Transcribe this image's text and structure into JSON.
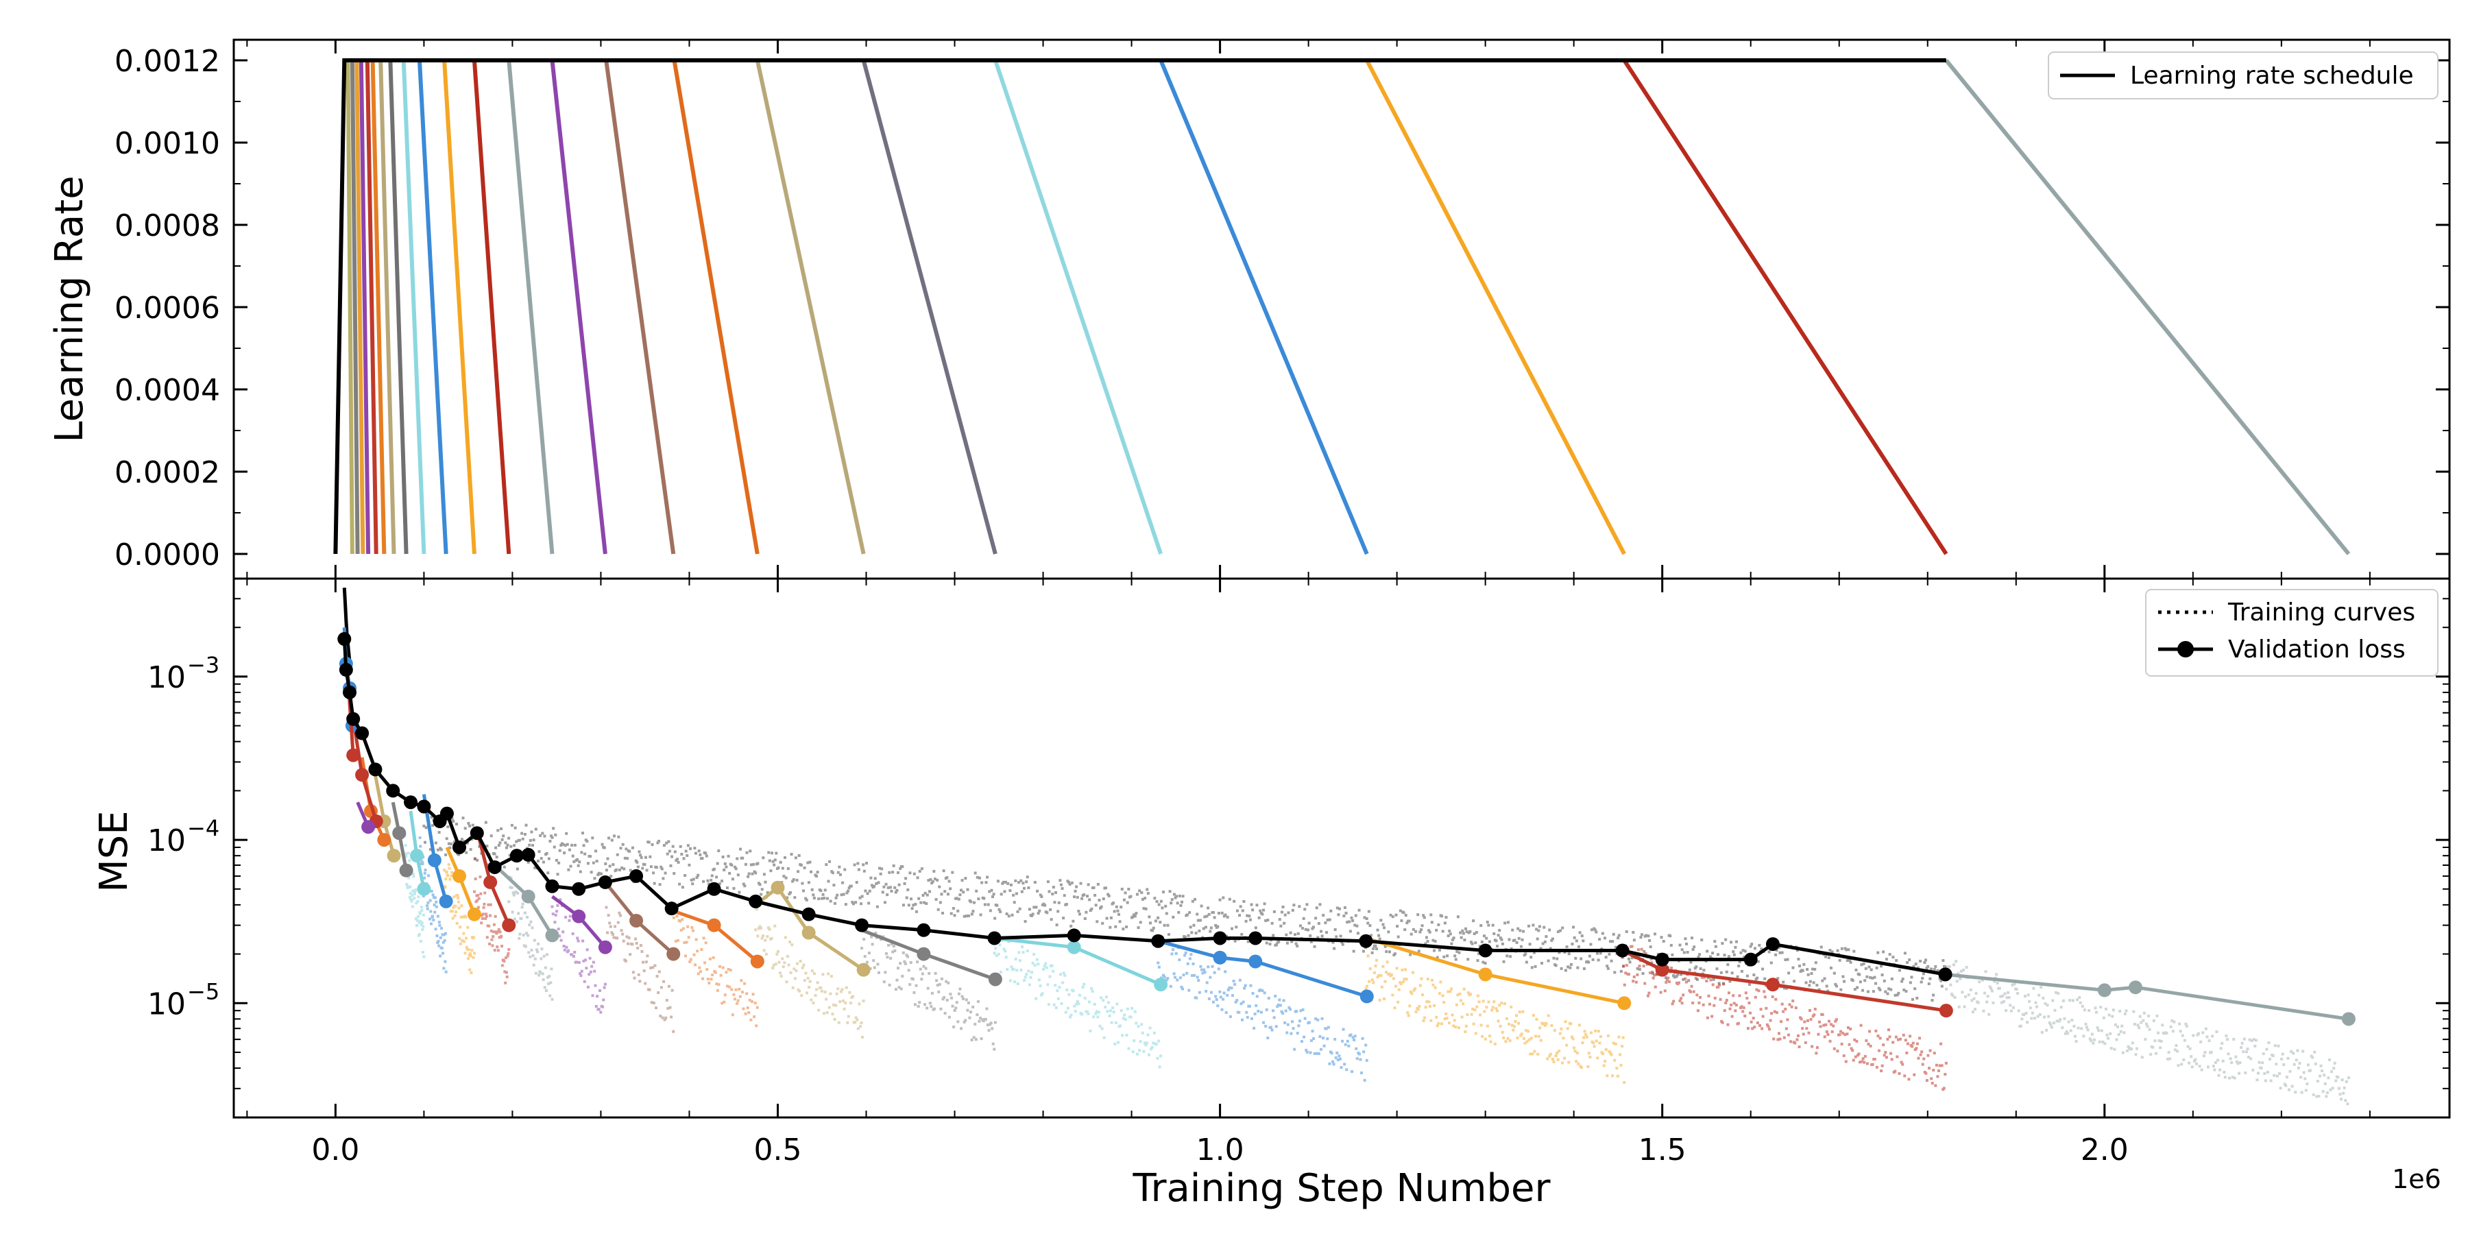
{
  "chart_data": [
    {
      "type": "line",
      "panel": "top",
      "ylabel": "Learning Rate",
      "xlabel": "",
      "ylim": [
        -6e-05,
        0.00125
      ],
      "xlim": [
        -115000,
        2390000
      ],
      "yticks": [
        0.0,
        0.0002,
        0.0004,
        0.0006,
        0.0008,
        0.001,
        0.0012
      ],
      "ytick_labels": [
        "0.0000",
        "0.0002",
        "0.0004",
        "0.0006",
        "0.0008",
        "0.0010",
        "0.0012"
      ],
      "legend": [
        {
          "label": "Learning rate schedule",
          "style": "solid",
          "color": "#000000"
        }
      ],
      "legend_position": "top-right",
      "warmup": {
        "start_step": 0,
        "end_step": 10000,
        "peak_lr": 0.0012
      },
      "cooldown_branches": [
        {
          "start": 14000,
          "end": 19000,
          "color": "#b8b068"
        },
        {
          "start": 19000,
          "end": 25000,
          "color": "#7f7f7f"
        },
        {
          "start": 24000,
          "end": 31000,
          "color": "#e8a030"
        },
        {
          "start": 29000,
          "end": 37000,
          "color": "#8e44ad"
        },
        {
          "start": 36000,
          "end": 46000,
          "color": "#c0392b"
        },
        {
          "start": 42000,
          "end": 55000,
          "color": "#e67e22"
        },
        {
          "start": 51000,
          "end": 66000,
          "color": "#b8a878"
        },
        {
          "start": 62000,
          "end": 80000,
          "color": "#707070"
        },
        {
          "start": 77000,
          "end": 100000,
          "color": "#8dd8e0"
        },
        {
          "start": 95000,
          "end": 125000,
          "color": "#3a8ad8"
        },
        {
          "start": 123000,
          "end": 157000,
          "color": "#f5a623"
        },
        {
          "start": 157000,
          "end": 196000,
          "color": "#b82a1c"
        },
        {
          "start": 196000,
          "end": 245000,
          "color": "#95a5a6"
        },
        {
          "start": 245000,
          "end": 305000,
          "color": "#8e44ad"
        },
        {
          "start": 306000,
          "end": 382000,
          "color": "#a0705e"
        },
        {
          "start": 383000,
          "end": 477000,
          "color": "#e06a1a"
        },
        {
          "start": 477000,
          "end": 597000,
          "color": "#b8a878"
        },
        {
          "start": 597000,
          "end": 746000,
          "color": "#707080"
        },
        {
          "start": 746000,
          "end": 933000,
          "color": "#90d8e0"
        },
        {
          "start": 933000,
          "end": 1166000,
          "color": "#3a8ad8"
        },
        {
          "start": 1166000,
          "end": 1457000,
          "color": "#f5a623"
        },
        {
          "start": 1457000,
          "end": 1821000,
          "color": "#b82a1c"
        },
        {
          "start": 1821000,
          "end": 2276000,
          "color": "#95a5a6"
        }
      ]
    },
    {
      "type": "line",
      "panel": "bottom",
      "ylabel": "MSE",
      "xlabel": "Training Step Number",
      "x_offset_text": "1e6",
      "yscale": "log",
      "ylim_log10": [
        -5.7,
        -2.4
      ],
      "xlim": [
        -115000,
        2390000
      ],
      "xticks": [
        0,
        500000,
        1000000,
        1500000,
        2000000
      ],
      "xtick_labels": [
        "0.0",
        "0.5",
        "1.0",
        "1.5",
        "2.0"
      ],
      "yticks_log10": [
        -3,
        -4,
        -5
      ],
      "ytick_bases": [
        "10",
        "10",
        "10"
      ],
      "ytick_exponents": [
        "−3",
        "−4",
        "−5"
      ],
      "legend": [
        {
          "label": "Training curves",
          "style": "dotted"
        },
        {
          "label": "Validation loss",
          "style": "solid-marker"
        }
      ],
      "legend_position": "top-right",
      "validation_main": {
        "name": "Validation loss (main run)",
        "color": "#000000",
        "points": [
          [
            10000,
            0.0017
          ],
          [
            12000,
            0.0011
          ],
          [
            16000,
            0.0008
          ],
          [
            20000,
            0.00055
          ],
          [
            30000,
            0.00045
          ],
          [
            45000,
            0.00027
          ],
          [
            65000,
            0.0002
          ],
          [
            85000,
            0.00017
          ],
          [
            100000,
            0.00016
          ],
          [
            118000,
            0.00013
          ],
          [
            126000,
            0.000145
          ],
          [
            140000,
            9e-05
          ],
          [
            160000,
            0.00011
          ],
          [
            180000,
            6.8e-05
          ],
          [
            205000,
            8e-05
          ],
          [
            218000,
            8.1e-05
          ],
          [
            245000,
            5.2e-05
          ],
          [
            275000,
            5e-05
          ],
          [
            305000,
            5.5e-05
          ],
          [
            340000,
            6e-05
          ],
          [
            380000,
            3.8e-05
          ],
          [
            428000,
            5e-05
          ],
          [
            475000,
            4.2e-05
          ],
          [
            535000,
            3.5e-05
          ],
          [
            595000,
            3e-05
          ],
          [
            665000,
            2.8e-05
          ],
          [
            745000,
            2.5e-05
          ],
          [
            835000,
            2.6e-05
          ],
          [
            930000,
            2.4e-05
          ],
          [
            1000000,
            2.5e-05
          ],
          [
            1040000,
            2.5e-05
          ],
          [
            1165000,
            2.4e-05
          ],
          [
            1300000,
            2.1e-05
          ],
          [
            1455000,
            2.1e-05
          ],
          [
            1500000,
            1.85e-05
          ],
          [
            1600000,
            1.85e-05
          ],
          [
            1625000,
            2.3e-05
          ],
          [
            1820000,
            1.5e-05
          ]
        ]
      },
      "validation_branches": [
        {
          "color": "#95a5a6",
          "points": [
            [
              1820000,
              1.5e-05
            ],
            [
              2000000,
              1.2e-05
            ],
            [
              2035000,
              1.25e-05
            ],
            [
              2276000,
              8e-06
            ]
          ]
        },
        {
          "color": "#c0392b",
          "points": [
            [
              1455000,
              2.1e-05
            ],
            [
              1500000,
              1.6e-05
            ],
            [
              1625000,
              1.3e-05
            ],
            [
              1821000,
              9e-06
            ]
          ]
        },
        {
          "color": "#f5a623",
          "points": [
            [
              1165000,
              2.5e-05
            ],
            [
              1300000,
              1.5e-05
            ],
            [
              1457000,
              1e-05
            ]
          ]
        },
        {
          "color": "#3a8ad8",
          "points": [
            [
              930000,
              2.4e-05
            ],
            [
              1000000,
              1.9e-05
            ],
            [
              1040000,
              1.8e-05
            ],
            [
              1166000,
              1.1e-05
            ]
          ]
        },
        {
          "color": "#7fd4dc",
          "points": [
            [
              745000,
              2.5e-05
            ],
            [
              835000,
              2.2e-05
            ],
            [
              933000,
              1.3e-05
            ]
          ]
        },
        {
          "color": "#808080",
          "points": [
            [
              595000,
              2.8e-05
            ],
            [
              665000,
              2e-05
            ],
            [
              746000,
              1.4e-05
            ]
          ]
        },
        {
          "color": "#c8b070",
          "points": [
            [
              475000,
              4e-05
            ],
            [
              500000,
              5.1e-05
            ],
            [
              535000,
              2.7e-05
            ],
            [
              597000,
              1.6e-05
            ]
          ]
        },
        {
          "color": "#e8752a",
          "points": [
            [
              380000,
              3.7e-05
            ],
            [
              428000,
              3e-05
            ],
            [
              477000,
              1.8e-05
            ]
          ]
        },
        {
          "color": "#a0705e",
          "points": [
            [
              305000,
              5.5e-05
            ],
            [
              340000,
              3.2e-05
            ],
            [
              382000,
              2e-05
            ]
          ]
        },
        {
          "color": "#8e44ad",
          "points": [
            [
              245000,
              4.5e-05
            ],
            [
              275000,
              3.4e-05
            ],
            [
              305000,
              2.2e-05
            ]
          ]
        },
        {
          "color": "#95a5a6",
          "points": [
            [
              180000,
              7e-05
            ],
            [
              218000,
              4.5e-05
            ],
            [
              245000,
              2.6e-05
            ]
          ]
        },
        {
          "color": "#c0392b",
          "points": [
            [
              160000,
              0.000115
            ],
            [
              175000,
              5.5e-05
            ],
            [
              196000,
              3e-05
            ]
          ]
        },
        {
          "color": "#f5a623",
          "points": [
            [
              126000,
              9e-05
            ],
            [
              140000,
              6e-05
            ],
            [
              157000,
              3.5e-05
            ]
          ]
        },
        {
          "color": "#3a8ad8",
          "points": [
            [
              100000,
              0.00019
            ],
            [
              112000,
              7.5e-05
            ],
            [
              125000,
              4.2e-05
            ]
          ]
        },
        {
          "color": "#7fd4dc",
          "points": [
            [
              85000,
              0.00015
            ],
            [
              92000,
              8e-05
            ],
            [
              100000,
              5e-05
            ]
          ]
        },
        {
          "color": "#808080",
          "points": [
            [
              65000,
              0.00017
            ],
            [
              72000,
              0.00011
            ],
            [
              80000,
              6.5e-05
            ]
          ]
        },
        {
          "color": "#c8b070",
          "points": [
            [
              45000,
              0.00025
            ],
            [
              55000,
              0.00013
            ],
            [
              66000,
              8e-05
            ]
          ]
        },
        {
          "color": "#e8752a",
          "points": [
            [
              30000,
              0.00032
            ],
            [
              40000,
              0.00015
            ],
            [
              55000,
              0.0001
            ]
          ]
        },
        {
          "color": "#c0392b",
          "points": [
            [
              20000,
              0.00055
            ],
            [
              30000,
              0.00025
            ],
            [
              46000,
              0.00013
            ]
          ]
        },
        {
          "color": "#8e44ad",
          "points": [
            [
              25000,
              0.00017
            ],
            [
              37000,
              0.00012
            ]
          ]
        },
        {
          "color": "#3a8ad8",
          "points": [
            [
              10000,
              0.002
            ],
            [
              12000,
              0.0012
            ],
            [
              16000,
              0.00085
            ],
            [
              19000,
              0.0005
            ]
          ]
        },
        {
          "color": "#c0392b",
          "points": [
            [
              14000,
              0.001
            ],
            [
              20000,
              0.00033
            ]
          ]
        }
      ],
      "training_curves": [
        {
          "color": "#7f7f7f",
          "start": 100000,
          "end": 1820000,
          "mse_start": 0.00011,
          "mse_end": 1.4e-05,
          "alpha": 0.75
        },
        {
          "color": "#95a5a6",
          "start": 1820000,
          "end": 2276000,
          "mse_start": 1.4e-05,
          "mse_end": 3.3e-06,
          "alpha": 0.45
        },
        {
          "color": "#c0392b",
          "start": 1455000,
          "end": 1821000,
          "mse_start": 1.8e-05,
          "mse_end": 4e-06,
          "alpha": 0.55
        },
        {
          "color": "#f5a623",
          "start": 1165000,
          "end": 1457000,
          "mse_start": 1.5e-05,
          "mse_end": 4.5e-06,
          "alpha": 0.5
        },
        {
          "color": "#3a8ad8",
          "start": 930000,
          "end": 1166000,
          "mse_start": 2e-05,
          "mse_end": 4.5e-06,
          "alpha": 0.5
        },
        {
          "color": "#7fd4dc",
          "start": 745000,
          "end": 933000,
          "mse_start": 2.2e-05,
          "mse_end": 5.5e-06,
          "alpha": 0.5
        },
        {
          "color": "#8c8c8c",
          "start": 595000,
          "end": 746000,
          "mse_start": 2.5e-05,
          "mse_end": 6.5e-06,
          "alpha": 0.55
        },
        {
          "color": "#c8b070",
          "start": 475000,
          "end": 597000,
          "mse_start": 3e-05,
          "mse_end": 7.5e-06,
          "alpha": 0.5
        },
        {
          "color": "#e8752a",
          "start": 380000,
          "end": 477000,
          "mse_start": 3.5e-05,
          "mse_end": 8e-06,
          "alpha": 0.5
        },
        {
          "color": "#a0705e",
          "start": 305000,
          "end": 382000,
          "mse_start": 4e-05,
          "mse_end": 9e-06,
          "alpha": 0.5
        },
        {
          "color": "#8e44ad",
          "start": 245000,
          "end": 305000,
          "mse_start": 4.5e-05,
          "mse_end": 1e-05,
          "alpha": 0.5
        },
        {
          "color": "#95a5a6",
          "start": 196000,
          "end": 245000,
          "mse_start": 5e-05,
          "mse_end": 1.3e-05,
          "alpha": 0.5
        },
        {
          "color": "#c0392b",
          "start": 157000,
          "end": 196000,
          "mse_start": 6e-05,
          "mse_end": 1.6e-05,
          "alpha": 0.5
        },
        {
          "color": "#f5a623",
          "start": 123000,
          "end": 157000,
          "mse_start": 7e-05,
          "mse_end": 1.8e-05,
          "alpha": 0.5
        },
        {
          "color": "#3a8ad8",
          "start": 95000,
          "end": 125000,
          "mse_start": 8e-05,
          "mse_end": 2e-05,
          "alpha": 0.5
        },
        {
          "color": "#7fd4dc",
          "start": 77000,
          "end": 100000,
          "mse_start": 9e-05,
          "mse_end": 2.5e-05,
          "alpha": 0.5
        }
      ]
    }
  ]
}
